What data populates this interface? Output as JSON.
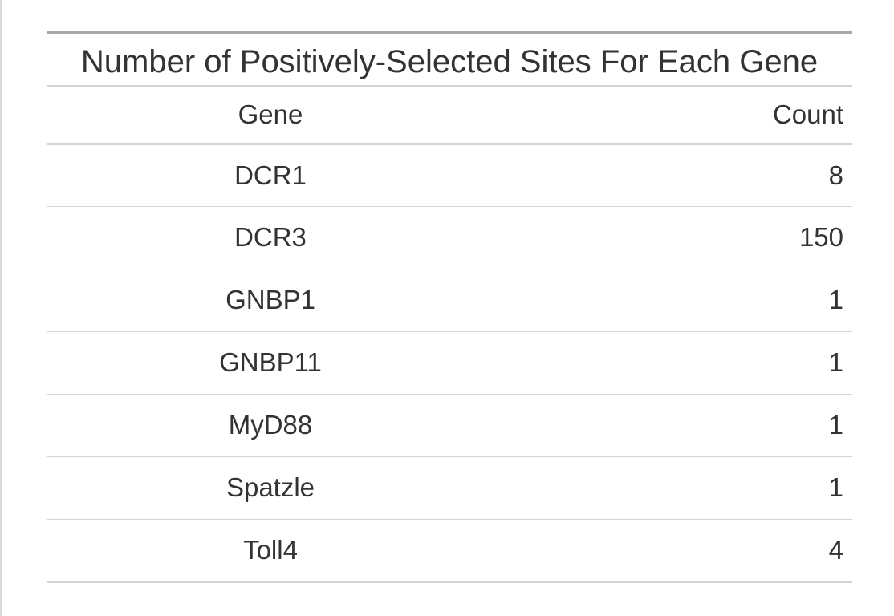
{
  "chart_data": {
    "type": "table",
    "title": "Number of Positively-Selected Sites For Each Gene",
    "columns": [
      "Gene",
      "Count"
    ],
    "rows": [
      {
        "gene": "DCR1",
        "count": "8"
      },
      {
        "gene": "DCR3",
        "count": "150"
      },
      {
        "gene": "GNBP1",
        "count": "1"
      },
      {
        "gene": "GNBP11",
        "count": "1"
      },
      {
        "gene": "MyD88",
        "count": "1"
      },
      {
        "gene": "Spatzle",
        "count": "1"
      },
      {
        "gene": "Toll4",
        "count": "4"
      }
    ]
  },
  "colors": {
    "text": "#333333",
    "rule": "#d3d3d3",
    "top_rule": "#a8a8a8",
    "background": "#ffffff"
  }
}
